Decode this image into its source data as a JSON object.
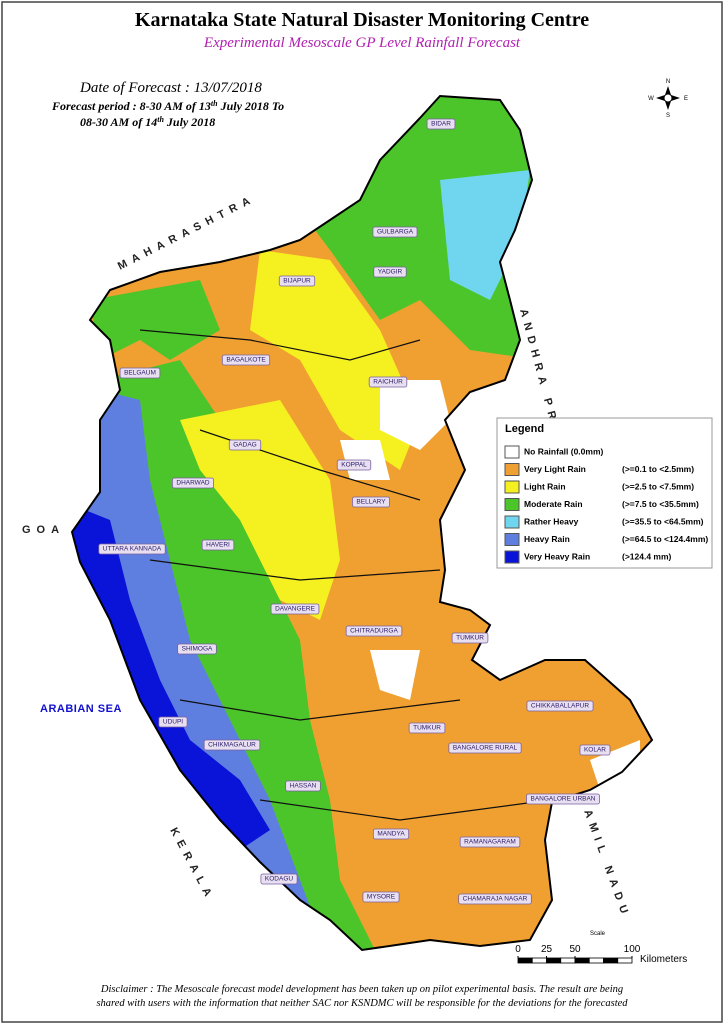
{
  "header": {
    "title": "Karnataka State Natural Disaster Monitoring Centre",
    "subtitle": "Experimental Mesoscale GP Level Rainfall Forecast"
  },
  "forecast": {
    "date": "Date of Forecast : 13/07/2018",
    "line1": [
      "Forecast period : 8-30 AM of 13",
      "th",
      " July 2018 To"
    ],
    "line2": [
      "08-30 AM of 14",
      "th",
      " July 2018"
    ]
  },
  "compass": {
    "n": "N",
    "e": "E",
    "s": "S",
    "w": "W"
  },
  "legend": {
    "title": "Legend",
    "items": [
      {
        "label": "No Rainfall (0.0mm)",
        "range": "",
        "color": "#ffffff"
      },
      {
        "label": "Very Light Rain",
        "range": "(>=0.1 to <2.5mm)",
        "color": "#f0a030"
      },
      {
        "label": "Light Rain",
        "range": "(>=2.5 to <7.5mm)",
        "color": "#f5f020"
      },
      {
        "label": "Moderate Rain",
        "range": "(>=7.5 to <35.5mm)",
        "color": "#4cc52a"
      },
      {
        "label": "Rather Heavy",
        "range": "(>=35.5 to <64.5mm)",
        "color": "#70d6f0"
      },
      {
        "label": "Heavy Rain",
        "range": "(>=64.5 to <124.4mm)",
        "color": "#5f7fe0"
      },
      {
        "label": "Very Heavy Rain",
        "range": "(>124.4 mm)",
        "color": "#0a14d8"
      }
    ]
  },
  "regions": [
    "MAHARASHTRA",
    "ANDHRA PRADESH",
    "GOA",
    "ARABIAN SEA",
    "KERALA",
    "TAMIL NADU"
  ],
  "districts": [
    "BIDAR",
    "GULBARGA",
    "BIJAPUR",
    "YADGIR",
    "BAGALKOTE",
    "RAICHUR",
    "BELGAUM",
    "KOPPAL",
    "GADAG",
    "DHARWAD",
    "BELLARY",
    "HAVERI",
    "UTTARA KANNADA",
    "DAVANGERE",
    "CHITRADURGA",
    "TUMKUR",
    "SHIMOGA",
    "CHIKKABALLAPUR",
    "UDUPI",
    "TUMKUR",
    "CHIKMAGALUR",
    "BANGALORE RURAL",
    "KOLAR",
    "HASSAN",
    "BANGALORE URBAN",
    "MANDYA",
    "RAMANAGARAM",
    "KODAGU",
    "MYSORE",
    "CHAMARAJA NAGAR"
  ],
  "scale": {
    "title": "Scale",
    "ticks": [
      0,
      25,
      50,
      100
    ],
    "max": 100,
    "unit": "Kilometers"
  },
  "disclaimer": [
    "Disclaimer : The Mesoscale forecast model development has been taken up on pilot experimental basis. The result are being",
    "shared with users with the information that neither SAC nor KSNDMC will be responsible  for the deviations for the forecasted"
  ]
}
